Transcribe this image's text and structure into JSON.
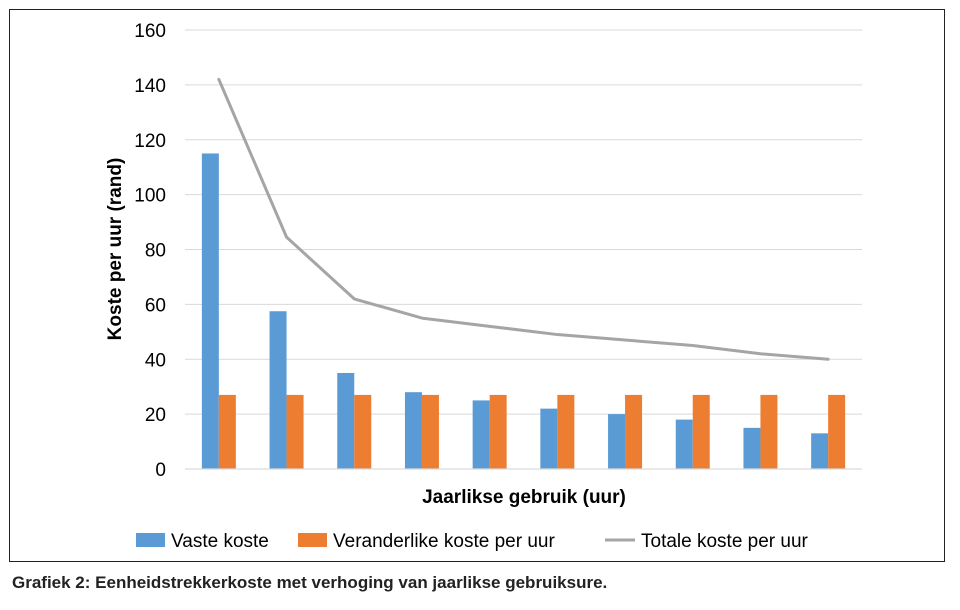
{
  "caption": "Grafiek 2: Eenheidstrekkerkoste met verhoging van jaarlikse gebruiksure.",
  "chart_data": {
    "type": "bar",
    "xlabel": "Jaarlikse gebruik (uur)",
    "ylabel": "Koste per uur (rand)",
    "ylim": [
      0,
      160
    ],
    "yticks": [
      0,
      20,
      40,
      60,
      80,
      100,
      120,
      140,
      160
    ],
    "grid": true,
    "legend_position": "bottom",
    "categories": [
      "",
      "",
      "",
      "",
      "",
      "",
      "",
      "",
      "",
      ""
    ],
    "series": [
      {
        "name": "Vaste koste",
        "type": "bar",
        "color": "#5B9BD5",
        "values": [
          115,
          57.5,
          35,
          28,
          25,
          22,
          20,
          18,
          15,
          13
        ]
      },
      {
        "name": "Veranderlike koste per uur",
        "type": "bar",
        "color": "#ED7D31",
        "values": [
          27,
          27,
          27,
          27,
          27,
          27,
          27,
          27,
          27,
          27
        ]
      },
      {
        "name": "Totale koste per uur",
        "type": "line",
        "color": "#A5A5A5",
        "values": [
          142,
          84.5,
          62,
          55,
          52,
          49,
          47,
          45,
          42,
          40
        ]
      }
    ]
  }
}
